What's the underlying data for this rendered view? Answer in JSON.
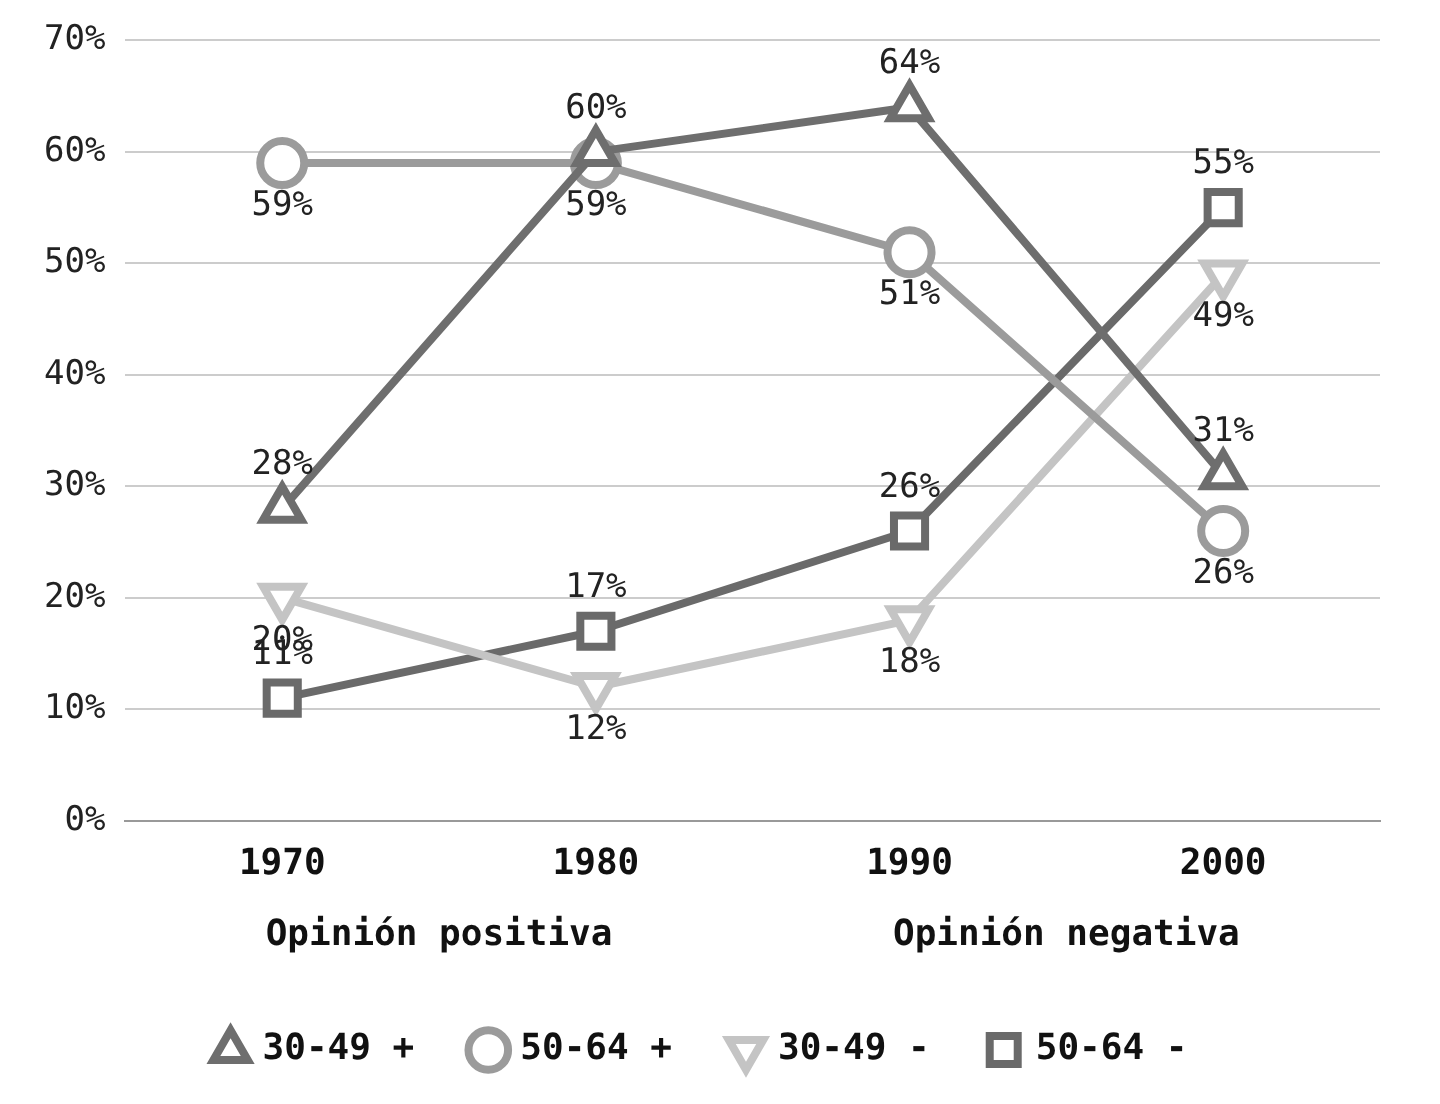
{
  "chart_data": {
    "type": "line",
    "categories": [
      "1970",
      "1980",
      "1990",
      "2000"
    ],
    "series": [
      {
        "name": "30-49 +",
        "color": "#6e6e6e",
        "marker": "triangle",
        "values": [
          28,
          60,
          64,
          31
        ],
        "value_labels": [
          "28%",
          "60%",
          "64%",
          "31%"
        ]
      },
      {
        "name": "50-64 +",
        "color": "#9b9b9b",
        "marker": "circle",
        "values": [
          59,
          59,
          51,
          26
        ],
        "value_labels": [
          "59%",
          "59%",
          "51%",
          "26%"
        ]
      },
      {
        "name": "30-49 -",
        "color": "#c4c4c4",
        "marker": "triangle-down",
        "values": [
          20,
          12,
          18,
          49
        ],
        "value_labels": [
          "20%",
          "12%",
          "18%",
          "49%"
        ]
      },
      {
        "name": "50-64 -",
        "color": "#6a6a6a",
        "marker": "square",
        "values": [
          11,
          17,
          26,
          55
        ],
        "value_labels": [
          "11%",
          "17%",
          "26%",
          "55%"
        ]
      }
    ],
    "ylim": [
      0,
      70
    ],
    "yticks": [
      {
        "value": 0,
        "label": "0%"
      },
      {
        "value": 10,
        "label": "10%"
      },
      {
        "value": 20,
        "label": "20%"
      },
      {
        "value": 30,
        "label": "30%"
      },
      {
        "value": 40,
        "label": "40%"
      },
      {
        "value": 50,
        "label": "50%"
      },
      {
        "value": 60,
        "label": "60%"
      },
      {
        "value": 70,
        "label": "70%"
      }
    ],
    "grid": "y",
    "legend": "bottom",
    "line_style": "solid",
    "annotations": [
      "Opinión positiva",
      "Opinión negativa"
    ]
  }
}
